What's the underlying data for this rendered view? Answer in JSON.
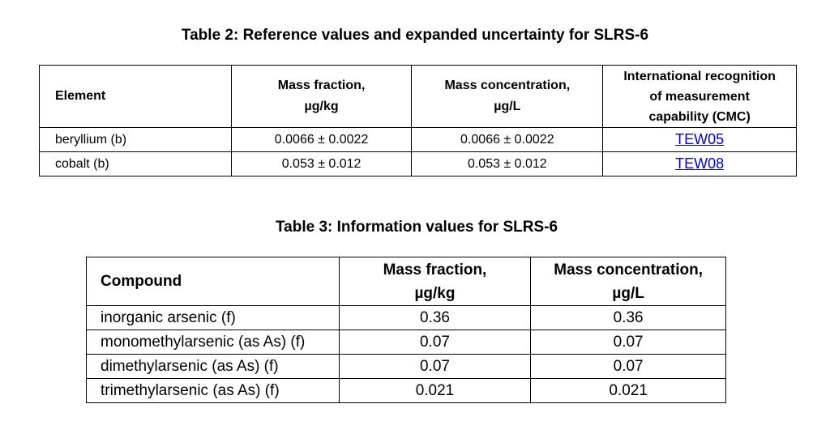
{
  "table2": {
    "caption": "Table 2: Reference values and expanded uncertainty for SLRS-6",
    "headers": {
      "element": "Element",
      "mass_fraction_line1": "Mass fraction,",
      "mass_fraction_line2": "µg/kg",
      "mass_conc_line1": "Mass concentration,",
      "mass_conc_line2": "µg/L",
      "cmc_line1": "International recognition",
      "cmc_line2": "of measurement",
      "cmc_line3": "capability (CMC)"
    },
    "rows": [
      {
        "element": "beryllium (b)",
        "mass_fraction": "0.0066 ± 0.0022",
        "mass_concentration": "0.0066 ± 0.0022",
        "cmc": "TEW05"
      },
      {
        "element": "cobalt (b)",
        "mass_fraction": "0.053 ± 0.012",
        "mass_concentration": "0.053 ± 0.012",
        "cmc": "TEW08"
      }
    ]
  },
  "table3": {
    "caption": "Table 3: Information values for SLRS-6",
    "headers": {
      "compound": "Compound",
      "mass_fraction_line1": "Mass fraction,",
      "mass_fraction_line2": "µg/kg",
      "mass_conc_line1": "Mass concentration,",
      "mass_conc_line2": "µg/L"
    },
    "rows": [
      {
        "compound": "inorganic arsenic (f)",
        "mass_fraction": "0.36",
        "mass_concentration": "0.36"
      },
      {
        "compound": "monomethylarsenic (as As) (f)",
        "mass_fraction": "0.07",
        "mass_concentration": "0.07"
      },
      {
        "compound": "dimethylarsenic (as As) (f)",
        "mass_fraction": "0.07",
        "mass_concentration": "0.07"
      },
      {
        "compound": "trimethylarsenic (as As) (f)",
        "mass_fraction": "0.021",
        "mass_concentration": "0.021"
      }
    ]
  },
  "colors": {
    "link": "#0000ee",
    "text": "#000000",
    "border": "#000000"
  }
}
